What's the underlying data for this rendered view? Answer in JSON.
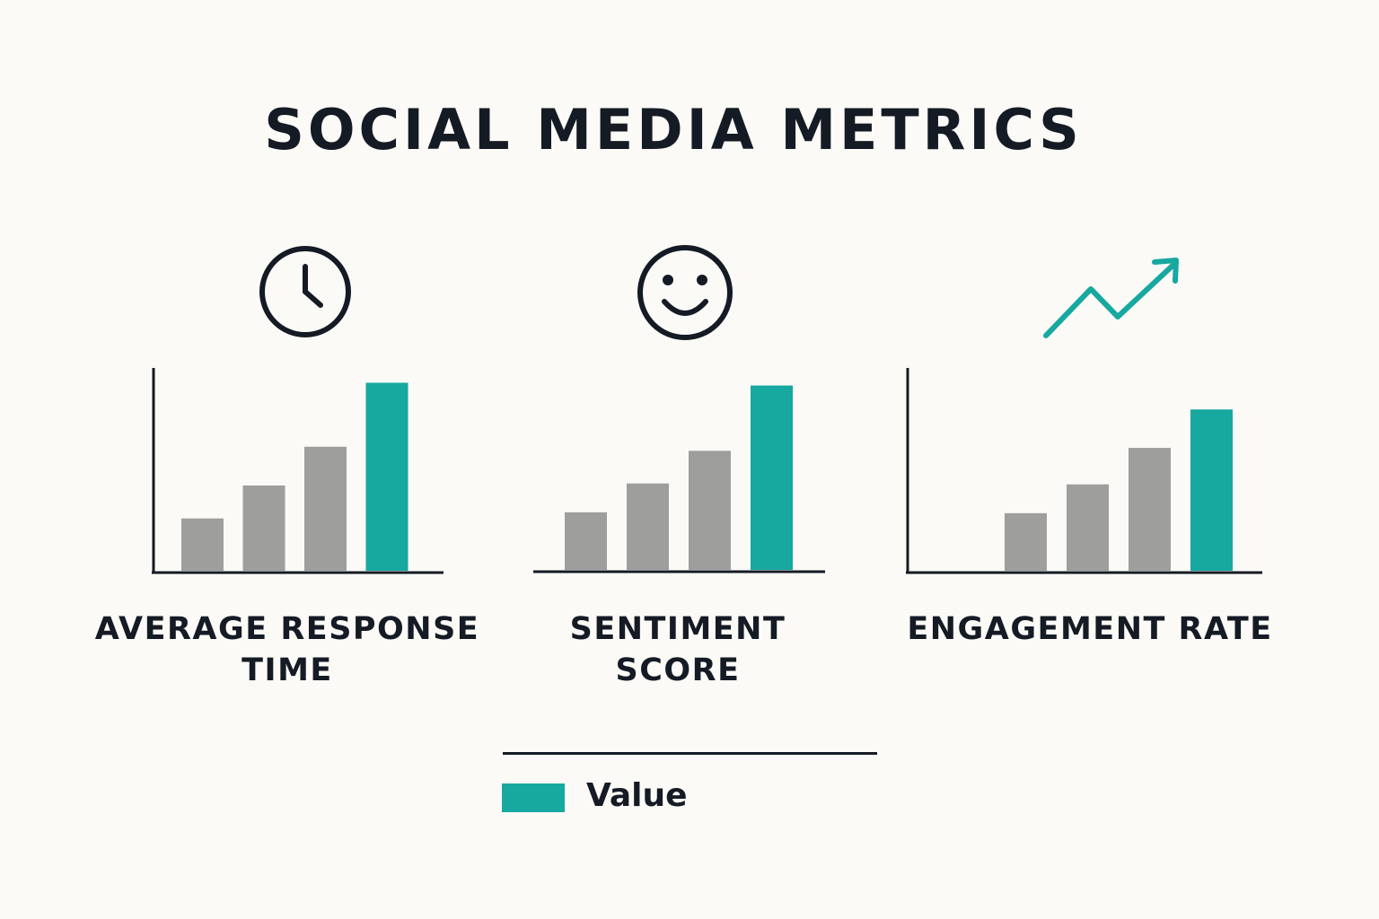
{
  "title": "SOCIAL MEDIA METRICS",
  "colors": {
    "accent": "#17a8a0",
    "bar": "#9e9e9c",
    "ink": "#151b24",
    "background": "#fbfaf6"
  },
  "icons": [
    "clock-icon",
    "smiley-icon",
    "trend-up-arrow-icon"
  ],
  "legend": {
    "label": "Value"
  },
  "chart_data": [
    {
      "type": "bar",
      "title": "AVERAGE RESPONSE TIME",
      "title_lines": [
        "AVERAGE RESPONSE",
        "TIME"
      ],
      "icon": "clock-icon",
      "values": [
        27,
        44,
        64,
        97
      ],
      "highlight": [
        false,
        false,
        false,
        true
      ],
      "ylim": [
        0,
        100
      ]
    },
    {
      "type": "bar",
      "title": "SENTIMENT SCORE",
      "title_lines": [
        "SENTIMENT",
        "SCORE"
      ],
      "icon": "smiley-icon",
      "values": [
        30,
        45,
        62,
        96
      ],
      "highlight": [
        false,
        false,
        false,
        true
      ],
      "ylim": [
        0,
        100
      ]
    },
    {
      "type": "bar",
      "title": "ENGAGEMENT RATE",
      "title_lines": [
        "ENGAGEMENT RATE"
      ],
      "icon": "trend-up-arrow-icon",
      "values": [
        null,
        30,
        45,
        64,
        84
      ],
      "highlight": [
        false,
        false,
        false,
        false,
        true
      ],
      "ylim": [
        0,
        100
      ]
    }
  ]
}
